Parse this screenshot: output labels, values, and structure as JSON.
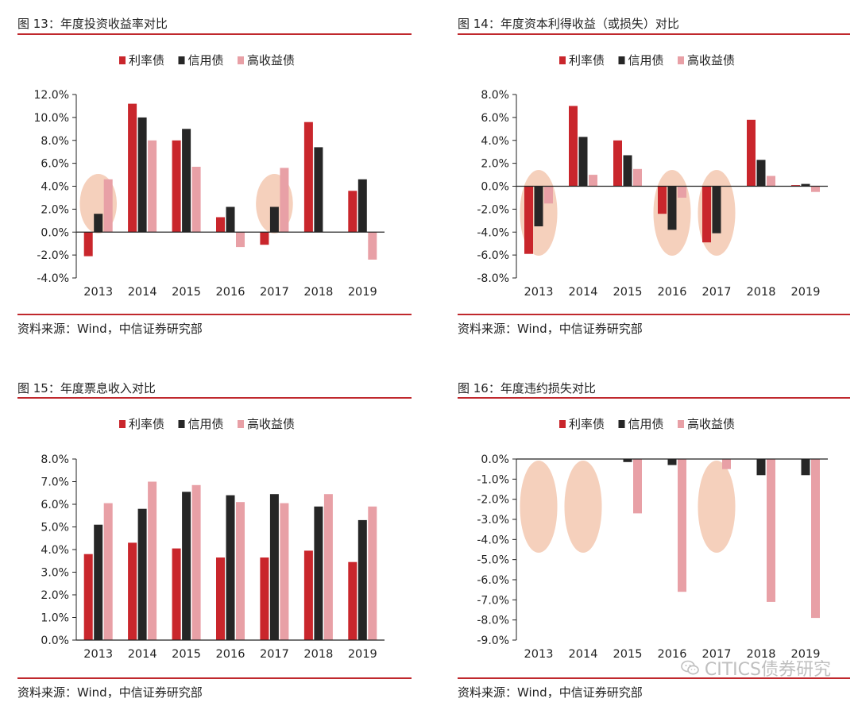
{
  "colors": {
    "rate": "#c9262c",
    "credit": "#262626",
    "hy": "#e8a0a6",
    "highlight": "#f2c3a9",
    "rule": "#c0282d"
  },
  "legend": [
    "利率债",
    "信用债",
    "高收益债"
  ],
  "source_text": "资料来源：Wind，中信证券研究部",
  "watermark": "CITICS债券研究",
  "watermark_icon": "wechat-icon",
  "chart_data": [
    {
      "id": "fig13",
      "type": "bar",
      "title": "图 13：年度投资收益率对比",
      "categories": [
        "2013",
        "2014",
        "2015",
        "2016",
        "2017",
        "2018",
        "2019"
      ],
      "series": [
        {
          "name": "利率债",
          "values": [
            -2.1,
            11.2,
            8.0,
            1.3,
            -1.1,
            9.6,
            3.6
          ]
        },
        {
          "name": "信用债",
          "values": [
            1.6,
            10.0,
            9.0,
            2.2,
            2.2,
            7.4,
            4.6
          ]
        },
        {
          "name": "高收益债",
          "values": [
            4.6,
            8.0,
            5.7,
            -1.3,
            5.6,
            0.0,
            -2.4
          ]
        }
      ],
      "ylim": [
        -4,
        12
      ],
      "ystep": 2,
      "tick_decimals": 1,
      "legend_position": "top",
      "highlight": [
        "2013",
        "2017"
      ],
      "xlabel": "",
      "ylabel": ""
    },
    {
      "id": "fig14",
      "type": "bar",
      "title": "图 14：年度资本利得收益（或损失）对比",
      "categories": [
        "2013",
        "2014",
        "2015",
        "2016",
        "2017",
        "2018",
        "2019"
      ],
      "series": [
        {
          "name": "利率债",
          "values": [
            -5.9,
            7.0,
            4.0,
            -2.4,
            -4.9,
            5.8,
            0.1
          ]
        },
        {
          "name": "信用债",
          "values": [
            -3.5,
            4.3,
            2.7,
            -3.8,
            -4.1,
            2.3,
            0.2
          ]
        },
        {
          "name": "高收益债",
          "values": [
            -1.5,
            1.0,
            1.5,
            -1.0,
            0.0,
            0.9,
            -0.5
          ]
        }
      ],
      "ylim": [
        -8,
        8
      ],
      "ystep": 2,
      "tick_decimals": 1,
      "legend_position": "top",
      "highlight": [
        "2013",
        "2016",
        "2017"
      ],
      "xlabel": "",
      "ylabel": ""
    },
    {
      "id": "fig15",
      "type": "bar",
      "title": "图 15：年度票息收入对比",
      "categories": [
        "2013",
        "2014",
        "2015",
        "2016",
        "2017",
        "2018",
        "2019"
      ],
      "series": [
        {
          "name": "利率债",
          "values": [
            3.8,
            4.3,
            4.05,
            3.65,
            3.65,
            3.95,
            3.45
          ]
        },
        {
          "name": "信用债",
          "values": [
            5.1,
            5.8,
            6.55,
            6.4,
            6.45,
            5.9,
            5.3
          ]
        },
        {
          "name": "高收益债",
          "values": [
            6.05,
            7.0,
            6.85,
            6.1,
            6.05,
            6.45,
            5.9
          ]
        }
      ],
      "ylim": [
        0,
        8
      ],
      "ystep": 1,
      "tick_decimals": 1,
      "legend_position": "top",
      "highlight": [],
      "xlabel": "",
      "ylabel": ""
    },
    {
      "id": "fig16",
      "type": "bar",
      "title": "图 16：年度违约损失对比",
      "categories": [
        "2013",
        "2014",
        "2015",
        "2016",
        "2017",
        "2018",
        "2019"
      ],
      "series": [
        {
          "name": "利率债",
          "values": [
            0,
            0,
            0,
            0,
            0,
            0,
            0
          ]
        },
        {
          "name": "信用债",
          "values": [
            0,
            0,
            -0.15,
            -0.3,
            0,
            -0.8,
            -0.8
          ]
        },
        {
          "name": "高收益债",
          "values": [
            0,
            0,
            -2.7,
            -6.6,
            -0.5,
            -7.1,
            -7.9
          ]
        }
      ],
      "ylim": [
        -9,
        0
      ],
      "ystep": 1,
      "tick_decimals": 1,
      "legend_position": "top",
      "highlight": [
        "2013",
        "2014",
        "2017"
      ],
      "xlabel": "",
      "ylabel": ""
    }
  ]
}
